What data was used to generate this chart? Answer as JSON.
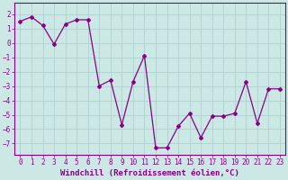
{
  "x": [
    0,
    1,
    2,
    3,
    4,
    5,
    6,
    7,
    8,
    9,
    10,
    11,
    12,
    13,
    14,
    15,
    16,
    17,
    18,
    19,
    20,
    21,
    22,
    23
  ],
  "y": [
    1.5,
    1.8,
    1.2,
    -0.1,
    1.3,
    1.6,
    1.6,
    -3.0,
    -2.6,
    -5.7,
    -2.7,
    -0.9,
    -7.3,
    -7.3,
    -5.8,
    -4.9,
    -6.6,
    -5.1,
    -5.1,
    -4.9,
    -2.7,
    -5.6,
    -3.2,
    -3.2
  ],
  "line_color": "#880088",
  "marker": "D",
  "markersize": 2.0,
  "linewidth": 0.9,
  "bg_color": "#cce8e4",
  "grid_color": "#aacccc",
  "xlabel": "Windchill (Refroidissement éolien,°C)",
  "xlabel_color": "#880088",
  "yticks": [
    2,
    1,
    0,
    -1,
    -2,
    -3,
    -4,
    -5,
    -6,
    -7
  ],
  "ylim": [
    -7.8,
    2.8
  ],
  "xlim": [
    -0.5,
    23.5
  ],
  "tick_color": "#880088",
  "tick_fontsize": 5.5,
  "xlabel_fontsize": 6.5,
  "spine_color": "#880088"
}
